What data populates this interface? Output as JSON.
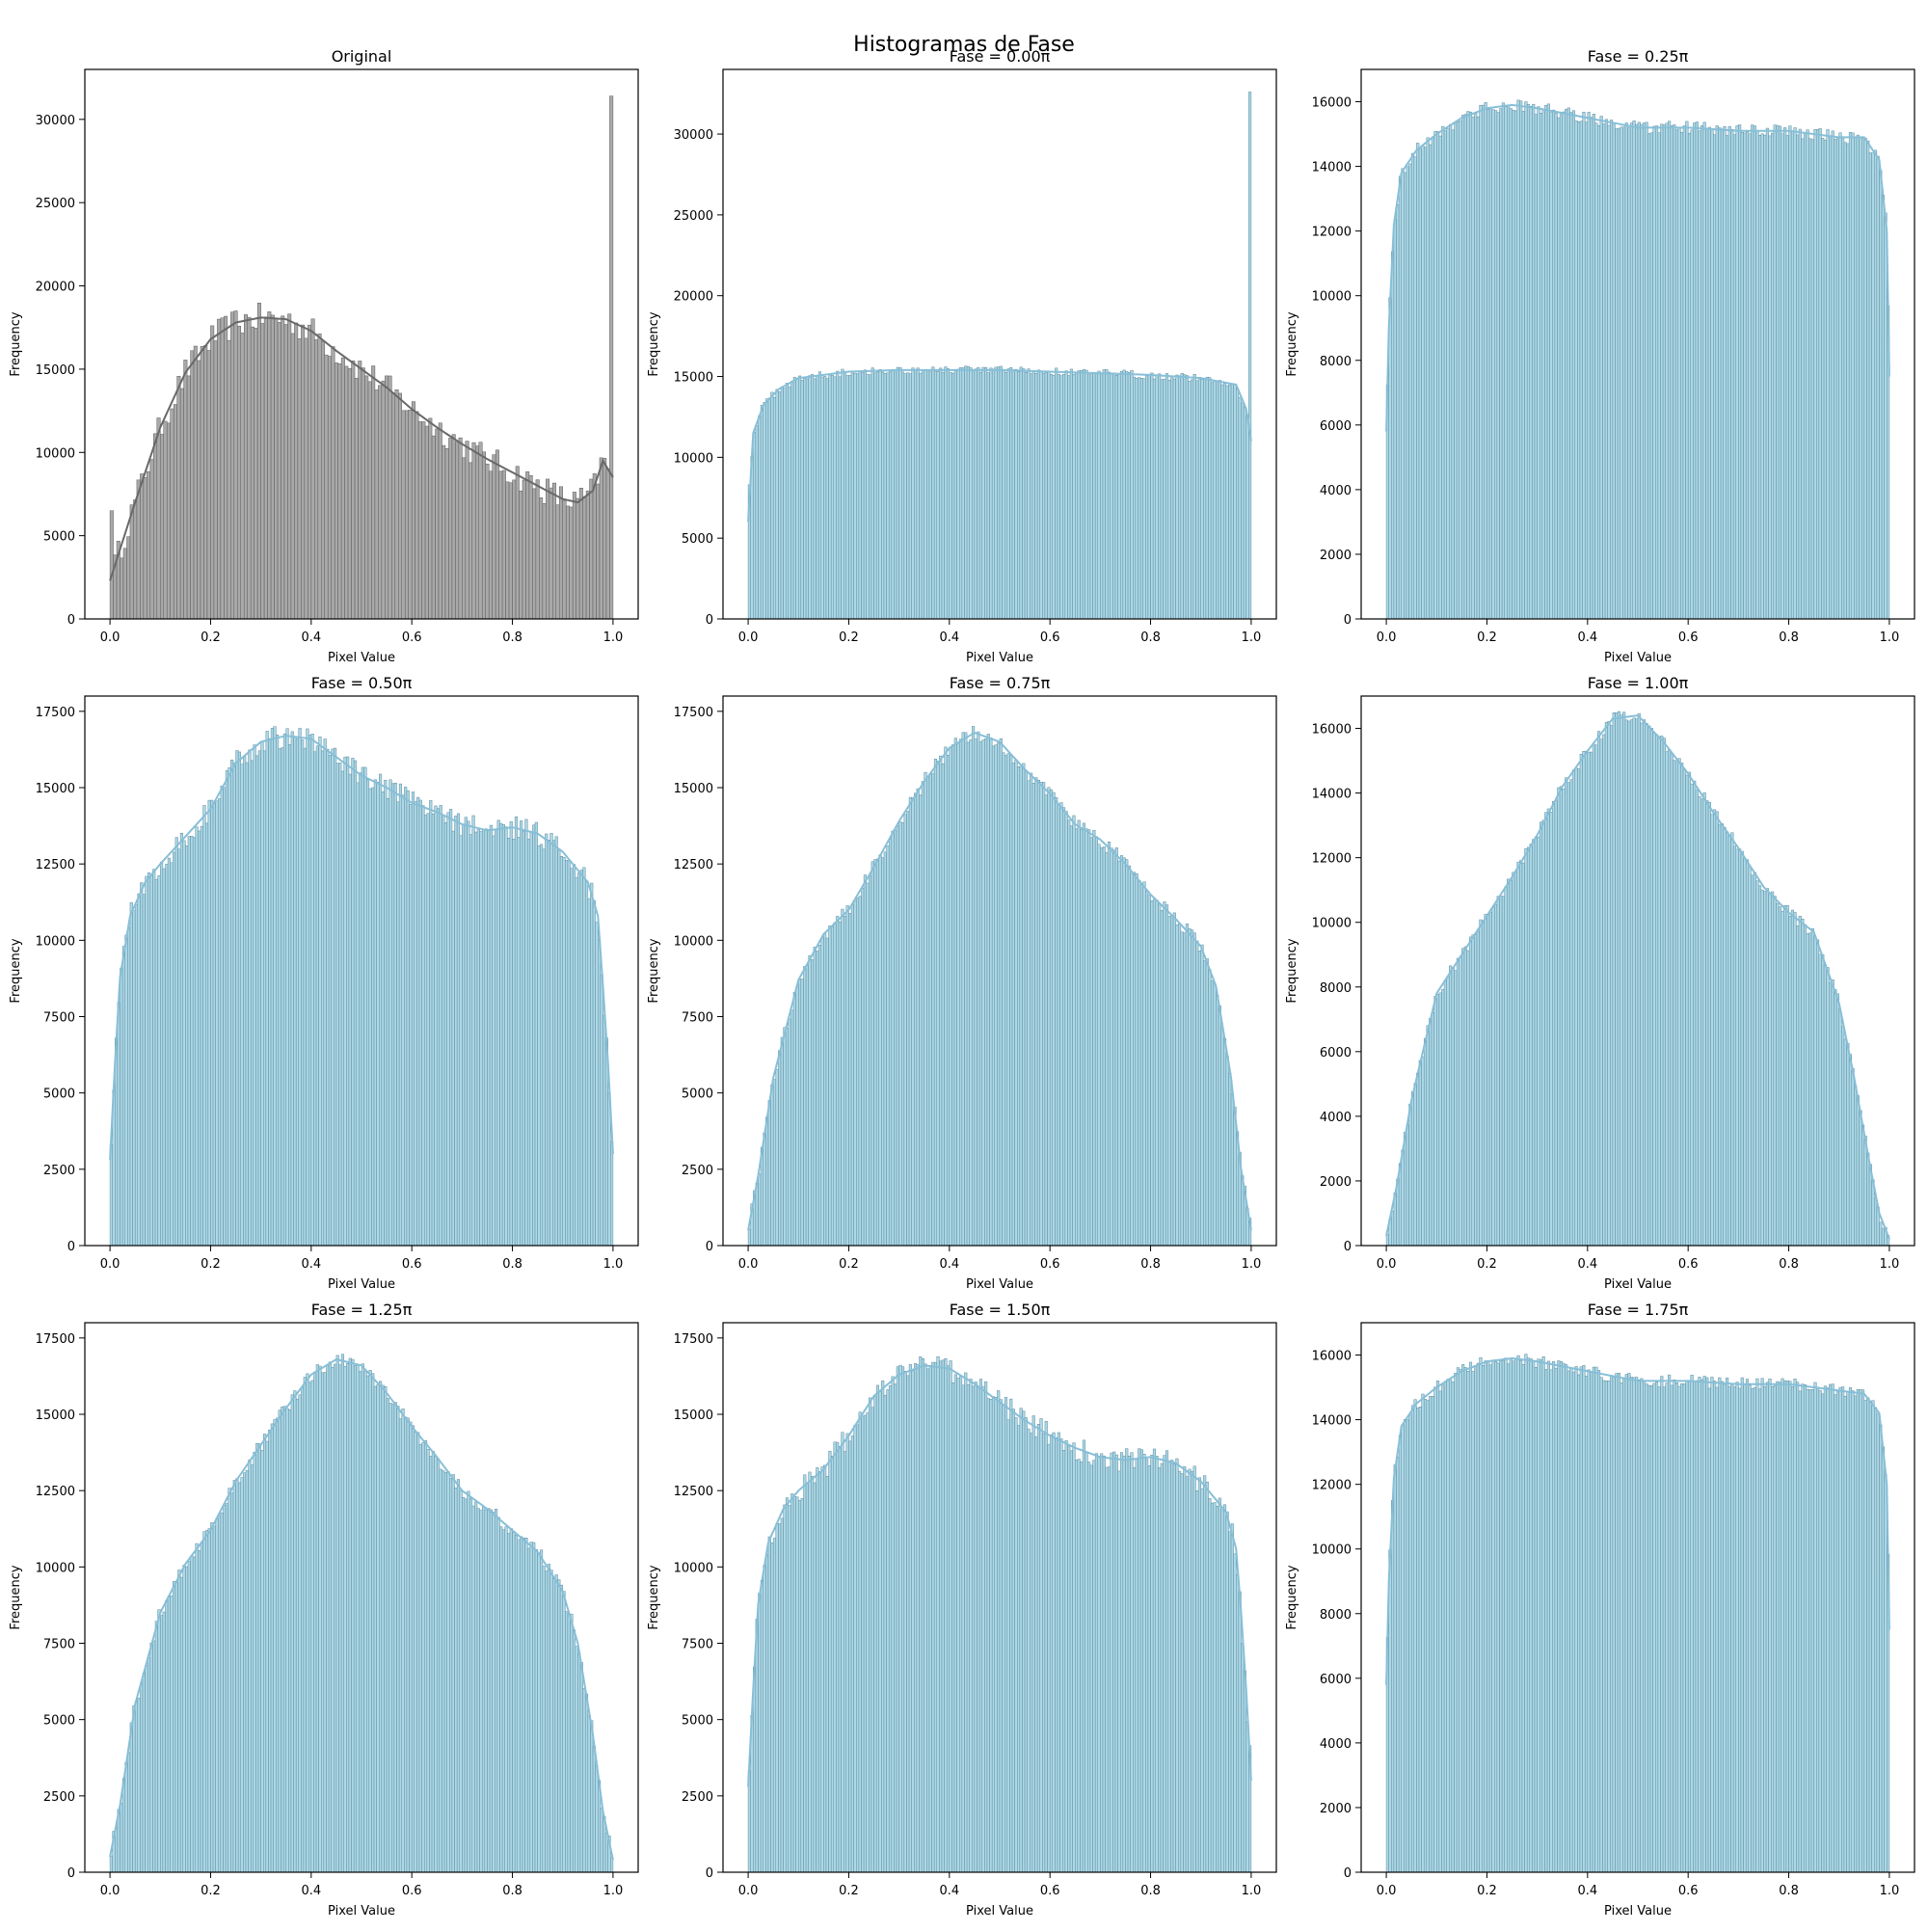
{
  "figure": {
    "suptitle": "Histogramas de Fase",
    "colors": {
      "original_bar": "#a9a9a9",
      "original_edge": "#5a5a5a",
      "original_kde": "#696969",
      "phase_bar": "#add8e6",
      "phase_edge": "#5b8a9e",
      "phase_kde": "#87bfd8"
    }
  },
  "chart_data": [
    {
      "type": "bar",
      "title": "Original",
      "xlabel": "Pixel Value",
      "ylabel": "Frequency",
      "xlim": [
        -0.05,
        1.05
      ],
      "ylim": [
        0,
        33000
      ],
      "grid": false,
      "kde": true,
      "color": "gray",
      "xticks": [
        0.0,
        0.2,
        0.4,
        0.6,
        0.8,
        1.0
      ],
      "yticks": [
        0,
        5000,
        10000,
        15000,
        20000,
        25000,
        30000
      ],
      "bins": 150,
      "kde_curve": {
        "x": [
          0,
          0.05,
          0.1,
          0.15,
          0.2,
          0.25,
          0.3,
          0.35,
          0.4,
          0.45,
          0.5,
          0.55,
          0.6,
          0.65,
          0.7,
          0.75,
          0.8,
          0.85,
          0.9,
          0.93,
          0.96,
          0.98,
          1.0
        ],
        "y": [
          2300,
          7000,
          11500,
          14800,
          16800,
          17800,
          18100,
          18000,
          17300,
          16100,
          15000,
          13900,
          12600,
          11500,
          10500,
          9600,
          8800,
          8000,
          7200,
          7000,
          7700,
          9500,
          8500
        ]
      },
      "spikes": [
        {
          "x": 0.0,
          "y": 6500
        },
        {
          "x": 1.0,
          "y": 31400
        }
      ],
      "noise": 900
    },
    {
      "type": "bar",
      "title": "Fase = 0.00π",
      "xlabel": "Pixel Value",
      "ylabel": "Frequency",
      "xlim": [
        -0.05,
        1.05
      ],
      "ylim": [
        0,
        34000
      ],
      "grid": false,
      "kde": true,
      "color": "skyblue",
      "xticks": [
        0.0,
        0.2,
        0.4,
        0.6,
        0.8,
        1.0
      ],
      "yticks": [
        0,
        5000,
        10000,
        15000,
        20000,
        25000,
        30000
      ],
      "bins": 200,
      "kde_curve": {
        "x": [
          0,
          0.01,
          0.03,
          0.06,
          0.1,
          0.2,
          0.3,
          0.4,
          0.5,
          0.6,
          0.7,
          0.8,
          0.9,
          0.97,
          0.99,
          1.0
        ],
        "y": [
          6000,
          11500,
          13200,
          14200,
          14900,
          15300,
          15400,
          15400,
          15400,
          15300,
          15200,
          15100,
          14900,
          14500,
          13000,
          11000
        ]
      },
      "spikes": [
        {
          "x": 0.0,
          "y": 8300
        },
        {
          "x": 1.0,
          "y": 32600
        }
      ],
      "noise": 250
    },
    {
      "type": "bar",
      "title": "Fase = 0.25π",
      "xlabel": "Pixel Value",
      "ylabel": "Frequency",
      "xlim": [
        -0.05,
        1.05
      ],
      "ylim": [
        0,
        17000
      ],
      "grid": false,
      "kde": true,
      "color": "skyblue",
      "xticks": [
        0.0,
        0.2,
        0.4,
        0.6,
        0.8,
        1.0
      ],
      "yticks": [
        0,
        2000,
        4000,
        6000,
        8000,
        10000,
        12000,
        14000,
        16000
      ],
      "bins": 200,
      "kde_curve": {
        "x": [
          0,
          0.005,
          0.015,
          0.03,
          0.06,
          0.1,
          0.15,
          0.2,
          0.25,
          0.3,
          0.4,
          0.5,
          0.6,
          0.7,
          0.8,
          0.9,
          0.95,
          0.98,
          0.995,
          1.0
        ],
        "y": [
          5800,
          9000,
          12200,
          13800,
          14500,
          15000,
          15500,
          15800,
          15900,
          15800,
          15500,
          15200,
          15200,
          15100,
          15100,
          14900,
          14900,
          14200,
          12000,
          7500
        ]
      },
      "noise": 200
    },
    {
      "type": "bar",
      "title": "Fase = 0.50π",
      "xlabel": "Pixel Value",
      "ylabel": "Frequency",
      "xlim": [
        -0.05,
        1.05
      ],
      "ylim": [
        0,
        18000
      ],
      "grid": false,
      "kde": true,
      "color": "skyblue",
      "xticks": [
        0.0,
        0.2,
        0.4,
        0.6,
        0.8,
        1.0
      ],
      "yticks": [
        0,
        2500,
        5000,
        7500,
        10000,
        12500,
        15000,
        17500
      ],
      "bins": 200,
      "kde_curve": {
        "x": [
          0,
          0.01,
          0.02,
          0.04,
          0.07,
          0.1,
          0.15,
          0.2,
          0.25,
          0.3,
          0.35,
          0.4,
          0.45,
          0.5,
          0.55,
          0.6,
          0.65,
          0.7,
          0.75,
          0.8,
          0.85,
          0.9,
          0.95,
          0.97,
          0.98,
          0.99,
          1.0
        ],
        "y": [
          2800,
          6000,
          8800,
          10800,
          11900,
          12500,
          13400,
          14300,
          15800,
          16500,
          16700,
          16600,
          16000,
          15400,
          15000,
          14500,
          14200,
          13800,
          13600,
          13700,
          13500,
          12900,
          11900,
          10800,
          8500,
          6000,
          3000
        ]
      },
      "noise": 400
    },
    {
      "type": "bar",
      "title": "Fase = 0.75π",
      "xlabel": "Pixel Value",
      "ylabel": "Frequency",
      "xlim": [
        -0.05,
        1.05
      ],
      "ylim": [
        0,
        18000
      ],
      "grid": false,
      "kde": true,
      "color": "skyblue",
      "xticks": [
        0.0,
        0.2,
        0.4,
        0.6,
        0.8,
        1.0
      ],
      "yticks": [
        0,
        2500,
        5000,
        7500,
        10000,
        12500,
        15000,
        17500
      ],
      "bins": 200,
      "kde_curve": {
        "x": [
          0,
          0.02,
          0.05,
          0.1,
          0.15,
          0.2,
          0.25,
          0.3,
          0.35,
          0.4,
          0.45,
          0.5,
          0.55,
          0.6,
          0.65,
          0.7,
          0.75,
          0.8,
          0.85,
          0.9,
          0.93,
          0.96,
          0.98,
          1.0
        ],
        "y": [
          500,
          2300,
          5500,
          8700,
          10200,
          11000,
          12400,
          13900,
          15200,
          16300,
          16800,
          16500,
          15600,
          14800,
          13800,
          13300,
          12500,
          11500,
          10700,
          9800,
          8500,
          5500,
          2500,
          500
        ]
      },
      "noise": 250
    },
    {
      "type": "bar",
      "title": "Fase = 1.00π",
      "xlabel": "Pixel Value",
      "ylabel": "Frequency",
      "xlim": [
        -0.05,
        1.05
      ],
      "ylim": [
        0,
        17000
      ],
      "grid": false,
      "kde": true,
      "color": "skyblue",
      "xticks": [
        0.0,
        0.2,
        0.4,
        0.6,
        0.8,
        1.0
      ],
      "yticks": [
        0,
        2000,
        4000,
        6000,
        8000,
        10000,
        12000,
        14000,
        16000
      ],
      "bins": 200,
      "kde_curve": {
        "x": [
          0,
          0.02,
          0.05,
          0.1,
          0.15,
          0.2,
          0.25,
          0.3,
          0.35,
          0.4,
          0.45,
          0.5,
          0.55,
          0.6,
          0.65,
          0.7,
          0.75,
          0.8,
          0.85,
          0.9,
          0.93,
          0.96,
          0.98,
          1.0
        ],
        "y": [
          300,
          1800,
          4500,
          7800,
          9000,
          10200,
          11400,
          12700,
          14200,
          15300,
          16300,
          16400,
          15600,
          14600,
          13400,
          12300,
          11100,
          10300,
          9700,
          7500,
          5200,
          2600,
          1000,
          200
        ]
      },
      "noise": 200
    },
    {
      "type": "bar",
      "title": "Fase = 1.25π",
      "xlabel": "Pixel Value",
      "ylabel": "Frequency",
      "xlim": [
        -0.05,
        1.05
      ],
      "ylim": [
        0,
        18000
      ],
      "grid": false,
      "kde": true,
      "color": "skyblue",
      "xticks": [
        0.0,
        0.2,
        0.4,
        0.6,
        0.8,
        1.0
      ],
      "yticks": [
        0,
        2500,
        5000,
        7500,
        10000,
        12500,
        15000,
        17500
      ],
      "bins": 200,
      "kde_curve": {
        "x": [
          0,
          0.02,
          0.05,
          0.1,
          0.15,
          0.2,
          0.25,
          0.3,
          0.35,
          0.4,
          0.45,
          0.5,
          0.55,
          0.6,
          0.65,
          0.7,
          0.75,
          0.8,
          0.85,
          0.9,
          0.93,
          0.96,
          0.98,
          1.0
        ],
        "y": [
          500,
          2200,
          5500,
          8500,
          10100,
          11200,
          12800,
          14000,
          15200,
          16300,
          16800,
          16600,
          15700,
          14600,
          13600,
          12500,
          11900,
          11200,
          10500,
          9200,
          7500,
          4500,
          2000,
          400
        ]
      },
      "noise": 250
    },
    {
      "type": "bar",
      "title": "Fase = 1.50π",
      "xlabel": "Pixel Value",
      "ylabel": "Frequency",
      "xlim": [
        -0.05,
        1.05
      ],
      "ylim": [
        0,
        18000
      ],
      "grid": false,
      "kde": true,
      "color": "skyblue",
      "xticks": [
        0.0,
        0.2,
        0.4,
        0.6,
        0.8,
        1.0
      ],
      "yticks": [
        0,
        2500,
        5000,
        7500,
        10000,
        12500,
        15000,
        17500
      ],
      "bins": 200,
      "kde_curve": {
        "x": [
          0,
          0.01,
          0.02,
          0.04,
          0.07,
          0.1,
          0.15,
          0.2,
          0.25,
          0.3,
          0.35,
          0.4,
          0.45,
          0.5,
          0.55,
          0.6,
          0.65,
          0.7,
          0.75,
          0.8,
          0.85,
          0.9,
          0.95,
          0.97,
          0.98,
          0.99,
          1.0
        ],
        "y": [
          2800,
          6000,
          8800,
          10800,
          11900,
          12500,
          13200,
          14300,
          15600,
          16300,
          16600,
          16500,
          16000,
          15400,
          14800,
          14300,
          13900,
          13600,
          13500,
          13600,
          13400,
          12800,
          11800,
          10600,
          8500,
          6000,
          3000
        ]
      },
      "noise": 400
    },
    {
      "type": "bar",
      "title": "Fase = 1.75π",
      "xlabel": "Pixel Value",
      "ylabel": "Frequency",
      "xlim": [
        -0.05,
        1.05
      ],
      "ylim": [
        0,
        17000
      ],
      "grid": false,
      "kde": true,
      "color": "skyblue",
      "xticks": [
        0.0,
        0.2,
        0.4,
        0.6,
        0.8,
        1.0
      ],
      "yticks": [
        0,
        2000,
        4000,
        6000,
        8000,
        10000,
        12000,
        14000,
        16000
      ],
      "bins": 200,
      "kde_curve": {
        "x": [
          0,
          0.005,
          0.015,
          0.03,
          0.06,
          0.1,
          0.15,
          0.2,
          0.25,
          0.3,
          0.4,
          0.5,
          0.6,
          0.7,
          0.8,
          0.9,
          0.95,
          0.98,
          0.995,
          1.0
        ],
        "y": [
          5800,
          9000,
          12200,
          13800,
          14500,
          15000,
          15500,
          15800,
          15900,
          15800,
          15500,
          15200,
          15200,
          15100,
          15100,
          14900,
          14800,
          14200,
          12000,
          7500
        ]
      },
      "noise": 200
    }
  ]
}
